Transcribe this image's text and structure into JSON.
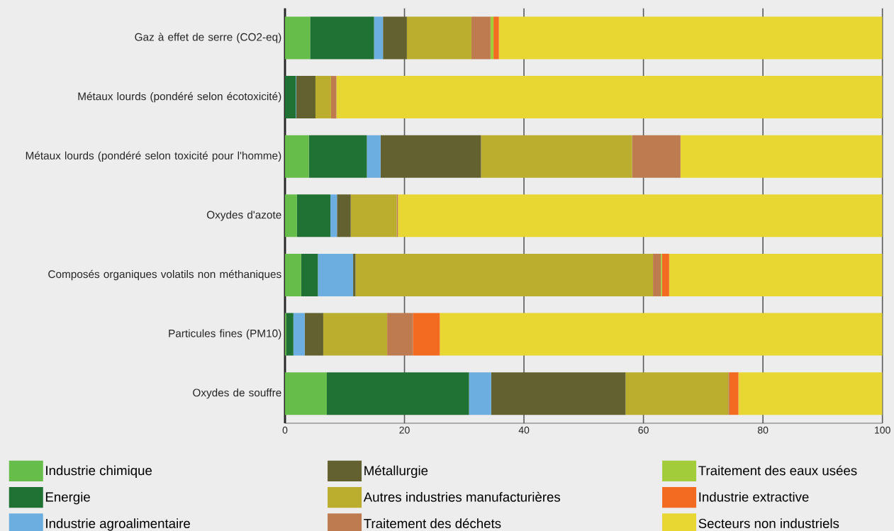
{
  "chart_data": {
    "type": "bar",
    "orientation": "horizontal",
    "stacked": true,
    "categories": [
      "Gaz à effet de serre (CO2-eq)",
      "Métaux lourds (pondéré selon écotoxicité)",
      "Métaux lourds (pondéré selon toxicité pour l'homme)",
      "Oxydes d'azote",
      "Composés organiques volatils non méthaniques",
      "Particules fines (PM10)",
      "Oxydes de souffre"
    ],
    "series": [
      {
        "name": "Industrie chimique",
        "color": "#66bd4a",
        "values": [
          4.2,
          0,
          4.0,
          2.0,
          2.7,
          0.2,
          7.0
        ]
      },
      {
        "name": "Energie",
        "color": "#1f7234",
        "values": [
          10.7,
          1.8,
          9.7,
          5.6,
          2.8,
          1.2,
          23.8
        ]
      },
      {
        "name": "Industrie agroalimentaire",
        "color": "#6daee0",
        "values": [
          1.5,
          0.1,
          2.3,
          1.1,
          5.9,
          1.9,
          3.7
        ]
      },
      {
        "name": "Métallurgie",
        "color": "#62612f",
        "values": [
          4.0,
          3.2,
          16.8,
          2.3,
          0.4,
          3.1,
          22.5
        ]
      },
      {
        "name": "Autres industries manufacturières",
        "color": "#bbad2d",
        "values": [
          10.8,
          2.6,
          25.3,
          7.7,
          49.8,
          10.7,
          17.2
        ]
      },
      {
        "name": "Traitement des déchets",
        "color": "#be7b4f",
        "values": [
          3.2,
          0.9,
          8.1,
          0.2,
          1.3,
          4.3,
          0.2
        ]
      },
      {
        "name": "Traitement des eaux usées",
        "color": "#a3cc3b",
        "values": [
          0.5,
          0,
          0,
          0,
          0.2,
          0,
          0
        ]
      },
      {
        "name": "Industrie extractive",
        "color": "#f26b21",
        "values": [
          0.9,
          0,
          0,
          0,
          1.2,
          4.5,
          1.5
        ]
      },
      {
        "name": "Secteurs non industriels",
        "color": "#e8d632",
        "values": [
          64.2,
          91.4,
          33.8,
          81.1,
          35.7,
          74.1,
          24.1
        ]
      }
    ],
    "xlim": [
      0,
      100
    ],
    "xticks": [
      0,
      20,
      40,
      60,
      80,
      100
    ],
    "grid": "x",
    "legend": "bottom"
  }
}
